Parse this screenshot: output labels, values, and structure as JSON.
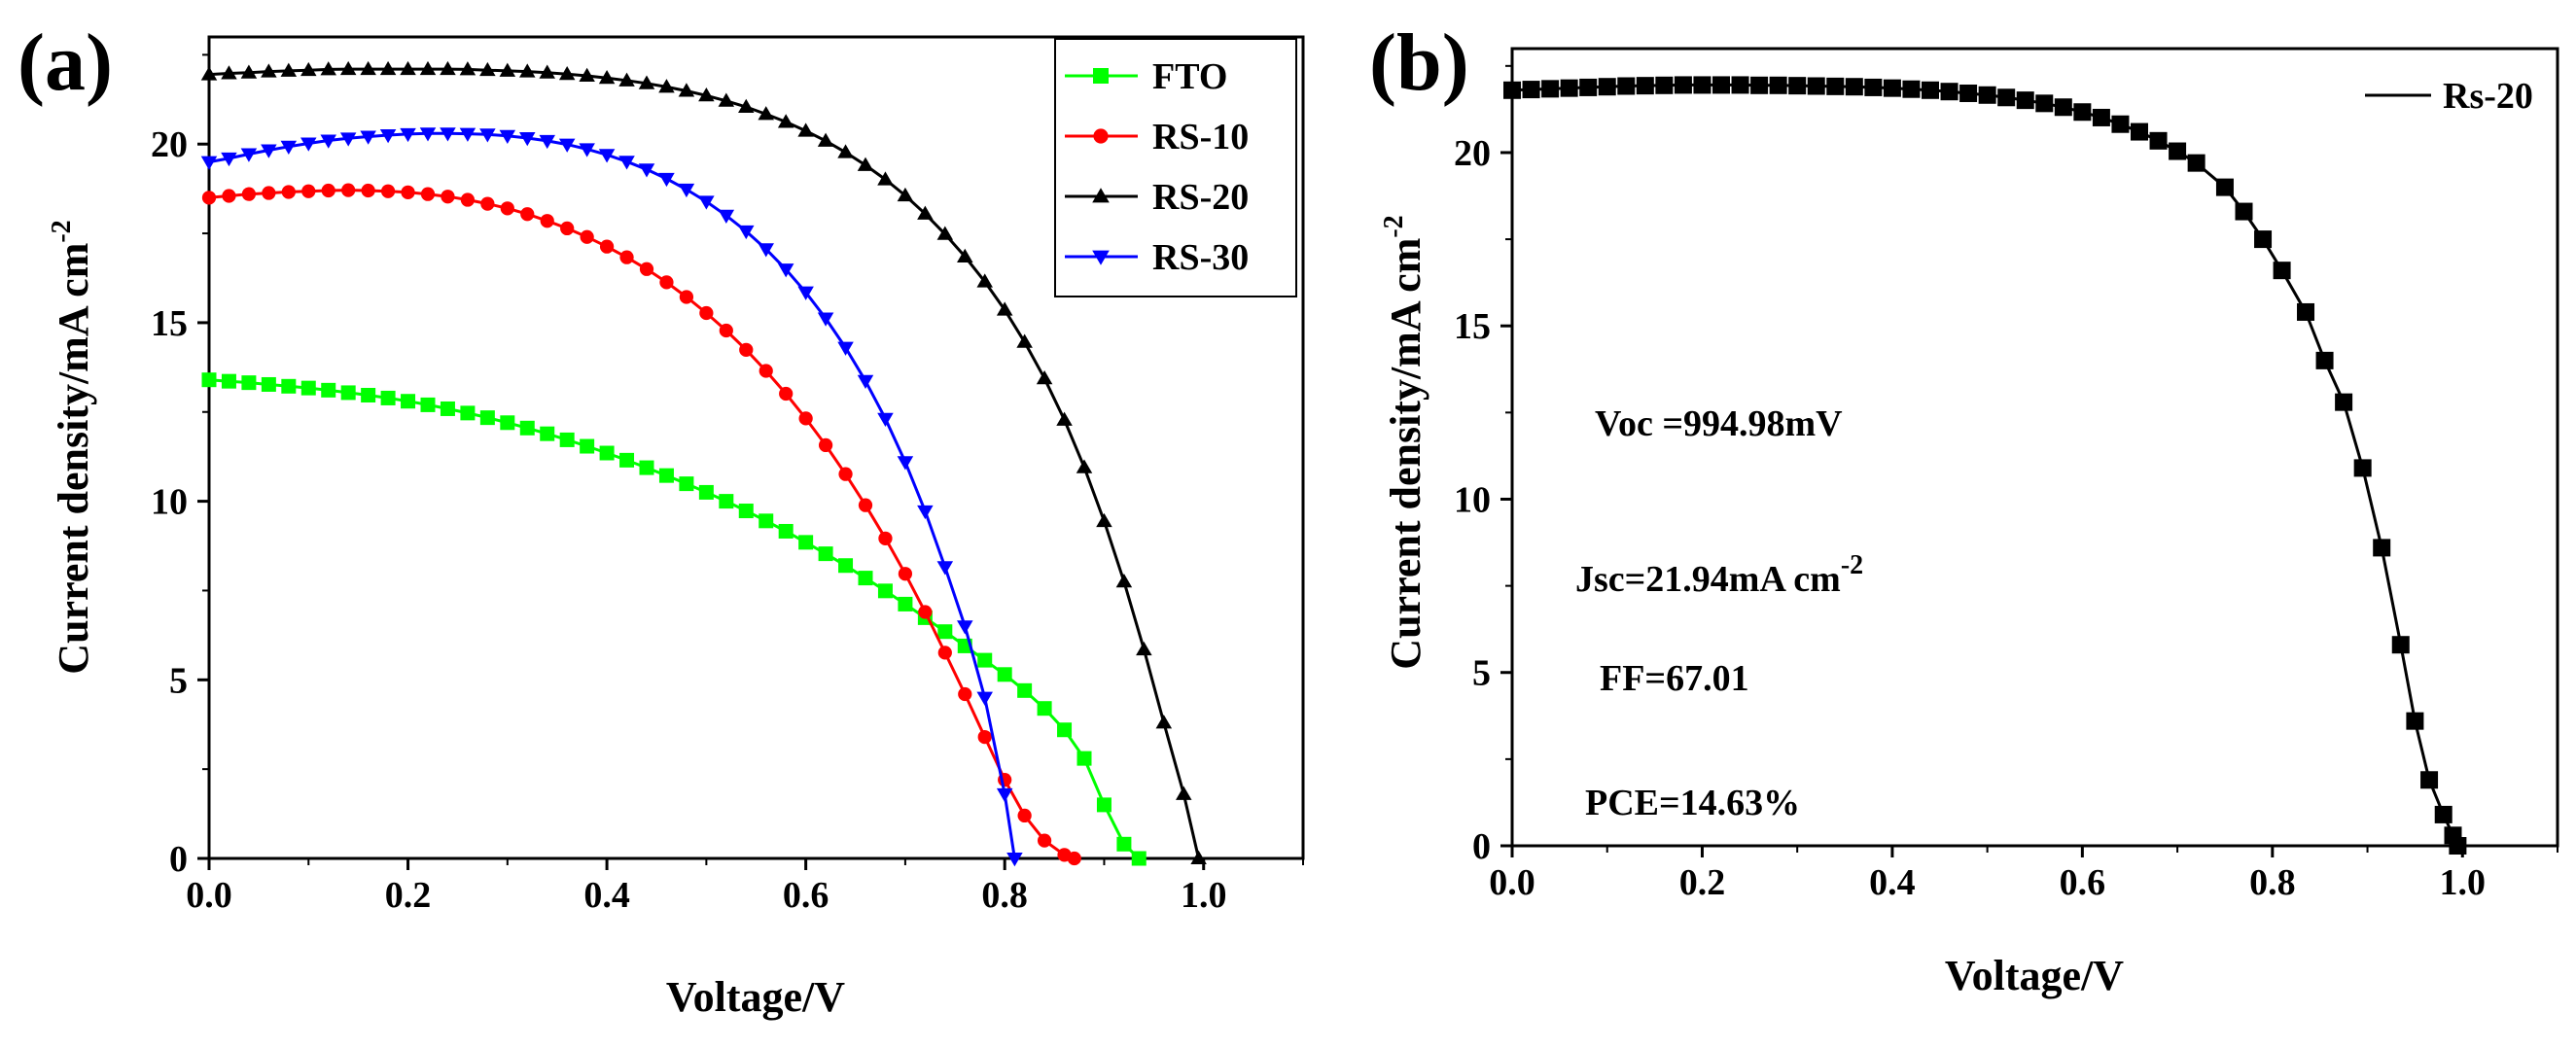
{
  "figure": {
    "panel_a_label": "(a)",
    "panel_b_label": "(b)",
    "annotations_b": {
      "voc": "Voc =994.98mV",
      "jsc": "Jsc=21.94mA cm",
      "jsc_exp": "-2",
      "ff": "FF=67.01",
      "pce": "PCE=14.63%"
    }
  },
  "chart_data": [
    {
      "type": "line",
      "panel": "a",
      "title": "",
      "xlabel": "Voltage/V",
      "ylabel": "Current density/mA cm",
      "ylabel_exp": "-2",
      "xlim": [
        0.0,
        1.1
      ],
      "ylim": [
        0,
        23
      ],
      "xticks": [
        "0.0",
        "0.2",
        "0.4",
        "0.6",
        "0.8",
        "1.0"
      ],
      "yticks": [
        "0",
        "5",
        "10",
        "15",
        "20"
      ],
      "legend_position": "top-right",
      "series": [
        {
          "name": "FTO",
          "color": "#00ff00",
          "marker": "square",
          "x": [
            0.0,
            0.02,
            0.04,
            0.06,
            0.08,
            0.1,
            0.12,
            0.14,
            0.16,
            0.18,
            0.2,
            0.22,
            0.24,
            0.26,
            0.28,
            0.3,
            0.32,
            0.34,
            0.36,
            0.38,
            0.4,
            0.42,
            0.44,
            0.46,
            0.48,
            0.5,
            0.52,
            0.54,
            0.56,
            0.58,
            0.6,
            0.62,
            0.64,
            0.66,
            0.68,
            0.7,
            0.72,
            0.74,
            0.76,
            0.78,
            0.8,
            0.82,
            0.84,
            0.86,
            0.88,
            0.9,
            0.92,
            0.935
          ],
          "y": [
            13.4,
            13.36,
            13.32,
            13.27,
            13.22,
            13.17,
            13.11,
            13.04,
            12.97,
            12.89,
            12.8,
            12.7,
            12.59,
            12.47,
            12.34,
            12.2,
            12.05,
            11.89,
            11.72,
            11.54,
            11.35,
            11.15,
            10.94,
            10.72,
            10.49,
            10.25,
            10.0,
            9.73,
            9.45,
            9.16,
            8.85,
            8.53,
            8.2,
            7.85,
            7.49,
            7.12,
            6.74,
            6.35,
            5.95,
            5.55,
            5.15,
            4.7,
            4.2,
            3.6,
            2.8,
            1.5,
            0.4,
            0.0
          ]
        },
        {
          "name": "RS-10",
          "color": "#ff0000",
          "marker": "circle",
          "x": [
            0.0,
            0.02,
            0.04,
            0.06,
            0.08,
            0.1,
            0.12,
            0.14,
            0.16,
            0.18,
            0.2,
            0.22,
            0.24,
            0.26,
            0.28,
            0.3,
            0.32,
            0.34,
            0.36,
            0.38,
            0.4,
            0.42,
            0.44,
            0.46,
            0.48,
            0.5,
            0.52,
            0.54,
            0.56,
            0.58,
            0.6,
            0.62,
            0.64,
            0.66,
            0.68,
            0.7,
            0.72,
            0.74,
            0.76,
            0.78,
            0.8,
            0.82,
            0.84,
            0.86,
            0.87
          ],
          "y": [
            18.5,
            18.55,
            18.6,
            18.63,
            18.66,
            18.68,
            18.7,
            18.71,
            18.7,
            18.68,
            18.65,
            18.6,
            18.53,
            18.44,
            18.33,
            18.2,
            18.04,
            17.85,
            17.64,
            17.4,
            17.13,
            16.83,
            16.5,
            16.13,
            15.72,
            15.27,
            14.78,
            14.24,
            13.65,
            13.01,
            12.32,
            11.57,
            10.76,
            9.89,
            8.96,
            7.97,
            6.9,
            5.76,
            4.6,
            3.4,
            2.2,
            1.2,
            0.5,
            0.1,
            0.0
          ]
        },
        {
          "name": "RS-20",
          "color": "#000000",
          "marker": "triangle-up",
          "x": [
            0.0,
            0.02,
            0.04,
            0.06,
            0.08,
            0.1,
            0.12,
            0.14,
            0.16,
            0.18,
            0.2,
            0.22,
            0.24,
            0.26,
            0.28,
            0.3,
            0.32,
            0.34,
            0.36,
            0.38,
            0.4,
            0.42,
            0.44,
            0.46,
            0.48,
            0.5,
            0.52,
            0.54,
            0.56,
            0.58,
            0.6,
            0.62,
            0.64,
            0.66,
            0.68,
            0.7,
            0.72,
            0.74,
            0.76,
            0.78,
            0.8,
            0.82,
            0.84,
            0.86,
            0.88,
            0.9,
            0.92,
            0.94,
            0.96,
            0.98,
            0.995
          ],
          "y": [
            21.95,
            21.98,
            22.0,
            22.03,
            22.05,
            22.07,
            22.09,
            22.1,
            22.1,
            22.1,
            22.1,
            22.1,
            22.1,
            22.09,
            22.07,
            22.05,
            22.03,
            22.0,
            21.96,
            21.91,
            21.85,
            21.78,
            21.7,
            21.6,
            21.49,
            21.36,
            21.21,
            21.04,
            20.84,
            20.62,
            20.37,
            20.09,
            19.77,
            19.41,
            19.01,
            18.56,
            18.05,
            17.48,
            16.85,
            16.15,
            15.36,
            14.46,
            13.44,
            12.28,
            10.95,
            9.44,
            7.75,
            5.85,
            3.8,
            1.8,
            0.0
          ]
        },
        {
          "name": "RS-30",
          "color": "#0000ff",
          "marker": "triangle-down",
          "x": [
            0.0,
            0.02,
            0.04,
            0.06,
            0.08,
            0.1,
            0.12,
            0.14,
            0.16,
            0.18,
            0.2,
            0.22,
            0.24,
            0.26,
            0.28,
            0.3,
            0.32,
            0.34,
            0.36,
            0.38,
            0.4,
            0.42,
            0.44,
            0.46,
            0.48,
            0.5,
            0.52,
            0.54,
            0.56,
            0.58,
            0.6,
            0.62,
            0.64,
            0.66,
            0.68,
            0.7,
            0.72,
            0.74,
            0.76,
            0.78,
            0.8,
            0.81
          ],
          "y": [
            19.5,
            19.6,
            19.72,
            19.83,
            19.93,
            20.02,
            20.1,
            20.16,
            20.21,
            20.25,
            20.28,
            20.3,
            20.3,
            20.29,
            20.27,
            20.23,
            20.17,
            20.09,
            19.99,
            19.86,
            19.7,
            19.51,
            19.29,
            19.03,
            18.73,
            18.39,
            18.0,
            17.56,
            17.06,
            16.49,
            15.85,
            15.12,
            14.3,
            13.37,
            12.31,
            11.1,
            9.72,
            8.16,
            6.5,
            4.5,
            1.8,
            0.0
          ]
        }
      ]
    },
    {
      "type": "line",
      "panel": "b",
      "title": "",
      "xlabel": "Voltage/V",
      "ylabel": "Current density/mA cm",
      "ylabel_exp": "-2",
      "xlim": [
        0.0,
        1.1
      ],
      "ylim": [
        0,
        23
      ],
      "xticks": [
        "0.0",
        "0.2",
        "0.4",
        "0.6",
        "0.8",
        "1.0"
      ],
      "yticks": [
        "0",
        "5",
        "10",
        "15",
        "20"
      ],
      "legend_position": "top-right",
      "series": [
        {
          "name": "Rs-20",
          "color": "#000000",
          "marker": "square",
          "x": [
            0.0,
            0.02,
            0.04,
            0.06,
            0.08,
            0.1,
            0.12,
            0.14,
            0.16,
            0.18,
            0.2,
            0.22,
            0.24,
            0.26,
            0.28,
            0.3,
            0.32,
            0.34,
            0.36,
            0.38,
            0.4,
            0.42,
            0.44,
            0.46,
            0.48,
            0.5,
            0.52,
            0.54,
            0.56,
            0.58,
            0.6,
            0.62,
            0.64,
            0.66,
            0.68,
            0.7,
            0.72,
            0.75,
            0.77,
            0.79,
            0.81,
            0.835,
            0.855,
            0.875,
            0.895,
            0.915,
            0.935,
            0.95,
            0.965,
            0.98,
            0.99,
            0.995
          ],
          "y": [
            21.8,
            21.82,
            21.84,
            21.86,
            21.88,
            21.9,
            21.92,
            21.93,
            21.94,
            21.95,
            21.95,
            21.95,
            21.95,
            21.94,
            21.94,
            21.93,
            21.92,
            21.91,
            21.9,
            21.88,
            21.86,
            21.83,
            21.8,
            21.76,
            21.71,
            21.66,
            21.59,
            21.51,
            21.42,
            21.31,
            21.17,
            21.01,
            20.82,
            20.6,
            20.34,
            20.04,
            19.7,
            19.0,
            18.3,
            17.5,
            16.6,
            15.4,
            14.0,
            12.8,
            10.9,
            8.6,
            5.8,
            3.6,
            1.9,
            0.9,
            0.3,
            0.0
          ]
        }
      ]
    }
  ]
}
